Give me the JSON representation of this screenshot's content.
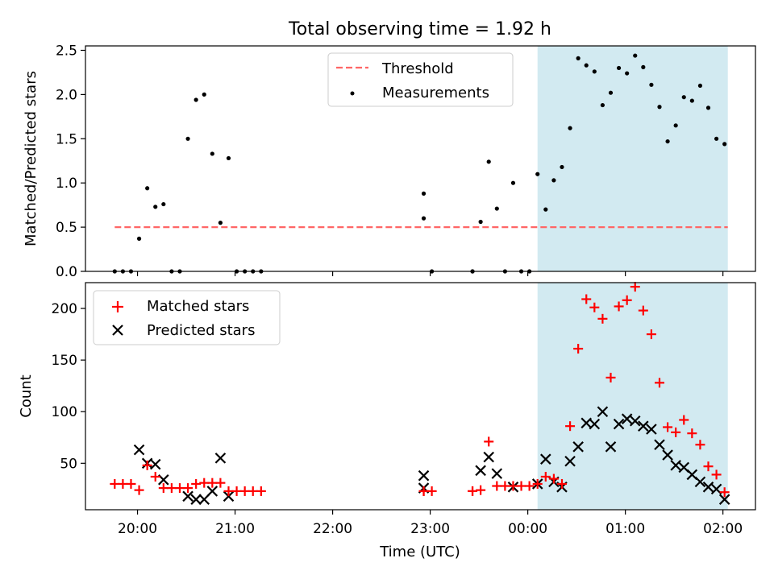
{
  "figure_title": "Total observing time = 1.92 h",
  "chart_data": [
    {
      "type": "scatter",
      "ylabel": "Matched/Predicted stars",
      "xlabel": "",
      "ylim": [
        0,
        2.55
      ],
      "xlim": [
        "19:28",
        "02:20"
      ],
      "yticks": [
        "0.0",
        "0.5",
        "1.0",
        "1.5",
        "2.0",
        "2.5"
      ],
      "highlight_span": {
        "start": "00:06",
        "end": "02:03",
        "color": "#add8e6"
      },
      "legend": {
        "placement": "upper center",
        "entries": [
          "Threshold",
          "Measurements"
        ]
      },
      "series": [
        {
          "name": "Threshold",
          "kind": "dashed-line",
          "color": "#ff6666",
          "x": [
            "19:46",
            "02:03"
          ],
          "y": [
            0.5,
            0.5
          ]
        },
        {
          "name": "Measurements",
          "kind": "dot",
          "color": "#000000",
          "x": [
            "19:46",
            "19:51",
            "19:56",
            "20:01",
            "20:06",
            "20:11",
            "20:16",
            "20:21",
            "20:26",
            "20:31",
            "20:36",
            "20:41",
            "20:46",
            "20:51",
            "20:56",
            "21:01",
            "21:06",
            "21:11",
            "21:16",
            "22:56",
            "22:56",
            "23:01",
            "23:26",
            "23:26",
            "23:31",
            "23:36",
            "23:41",
            "23:46",
            "23:51",
            "23:56",
            "24:01",
            "24:06",
            "24:11",
            "24:16",
            "24:21",
            "24:26",
            "24:31",
            "24:36",
            "24:41",
            "24:46",
            "24:51",
            "24:56",
            "25:01",
            "25:06",
            "25:11",
            "25:16",
            "25:21",
            "25:26",
            "25:31",
            "25:36",
            "25:41",
            "25:46",
            "25:51",
            "25:56",
            "26:01"
          ],
          "y": [
            0.0,
            0.0,
            0.0,
            0.37,
            0.94,
            0.73,
            0.76,
            0.0,
            0.0,
            1.5,
            1.94,
            2.0,
            1.33,
            0.55,
            1.28,
            0.0,
            0.0,
            0.0,
            0.0,
            0.6,
            0.88,
            0.0,
            0.0,
            0.0,
            0.56,
            1.24,
            0.71,
            0.0,
            1.0,
            0.0,
            0.0,
            1.1,
            0.7,
            1.03,
            1.18,
            1.62,
            2.41,
            2.33,
            2.26,
            1.88,
            2.02,
            2.3,
            2.24,
            2.44,
            2.31,
            2.11,
            1.86,
            1.47,
            1.65,
            1.97,
            1.93,
            2.1,
            1.85,
            1.5,
            1.44
          ]
        }
      ]
    },
    {
      "type": "scatter",
      "ylabel": "Count",
      "xlabel": "Time (UTC)",
      "ylim": [
        5,
        225
      ],
      "xlim": [
        "19:28",
        "02:20"
      ],
      "yticks": [
        "50",
        "100",
        "150",
        "200"
      ],
      "xticks": [
        "20:00",
        "21:00",
        "22:00",
        "23:00",
        "00:00",
        "01:00",
        "02:00"
      ],
      "highlight_span": {
        "start": "00:06",
        "end": "02:03",
        "color": "#add8e6"
      },
      "legend": {
        "placement": "upper left",
        "entries": [
          "Matched stars",
          "Predicted stars"
        ]
      },
      "series": [
        {
          "name": "Matched stars",
          "kind": "plus",
          "color": "#ff0000",
          "x": [
            "19:46",
            "19:51",
            "19:56",
            "20:01",
            "20:06",
            "20:11",
            "20:16",
            "20:21",
            "20:26",
            "20:31",
            "20:36",
            "20:41",
            "20:46",
            "20:51",
            "20:56",
            "21:01",
            "21:06",
            "21:11",
            "21:16",
            "22:56",
            "22:56",
            "23:01",
            "23:26",
            "23:26",
            "23:31",
            "23:36",
            "23:41",
            "23:46",
            "23:51",
            "23:56",
            "24:01",
            "24:06",
            "24:11",
            "24:16",
            "24:21",
            "24:26",
            "24:31",
            "24:36",
            "24:41",
            "24:46",
            "24:51",
            "24:56",
            "25:01",
            "25:06",
            "25:11",
            "25:16",
            "25:21",
            "25:26",
            "25:31",
            "25:36",
            "25:41",
            "25:46",
            "25:51",
            "25:56",
            "26:01"
          ],
          "y": [
            30,
            30,
            30,
            24,
            48,
            37,
            26,
            26,
            26,
            26,
            30,
            31,
            31,
            31,
            23,
            23,
            23,
            23,
            23,
            23,
            23,
            23,
            23,
            23,
            24,
            71,
            28,
            28,
            28,
            28,
            28,
            30,
            37,
            35,
            30,
            86,
            161,
            209,
            201,
            190,
            133,
            202,
            208,
            221,
            198,
            175,
            128,
            85,
            80,
            92,
            79,
            68,
            47,
            39,
            22
          ]
        },
        {
          "name": "Predicted stars",
          "kind": "x",
          "color": "#000000",
          "x": [
            "20:01",
            "20:06",
            "20:11",
            "20:16",
            "20:31",
            "20:36",
            "20:41",
            "20:46",
            "20:51",
            "20:56",
            "22:56",
            "22:56",
            "23:31",
            "23:36",
            "23:41",
            "23:51",
            "24:06",
            "24:11",
            "24:16",
            "24:21",
            "24:26",
            "24:31",
            "24:36",
            "24:41",
            "24:46",
            "24:51",
            "24:56",
            "25:01",
            "25:06",
            "25:11",
            "25:16",
            "25:21",
            "25:26",
            "25:31",
            "25:36",
            "25:41",
            "25:46",
            "25:51",
            "25:56",
            "26:01"
          ],
          "y": [
            63,
            50,
            49,
            34,
            18,
            15,
            15,
            23,
            55,
            18,
            38,
            26,
            43,
            56,
            40,
            27,
            30,
            54,
            32,
            27,
            52,
            66,
            89,
            88,
            100,
            66,
            88,
            93,
            91,
            86,
            83,
            68,
            58,
            48,
            46,
            39,
            32,
            27,
            25,
            15
          ]
        }
      ]
    }
  ]
}
